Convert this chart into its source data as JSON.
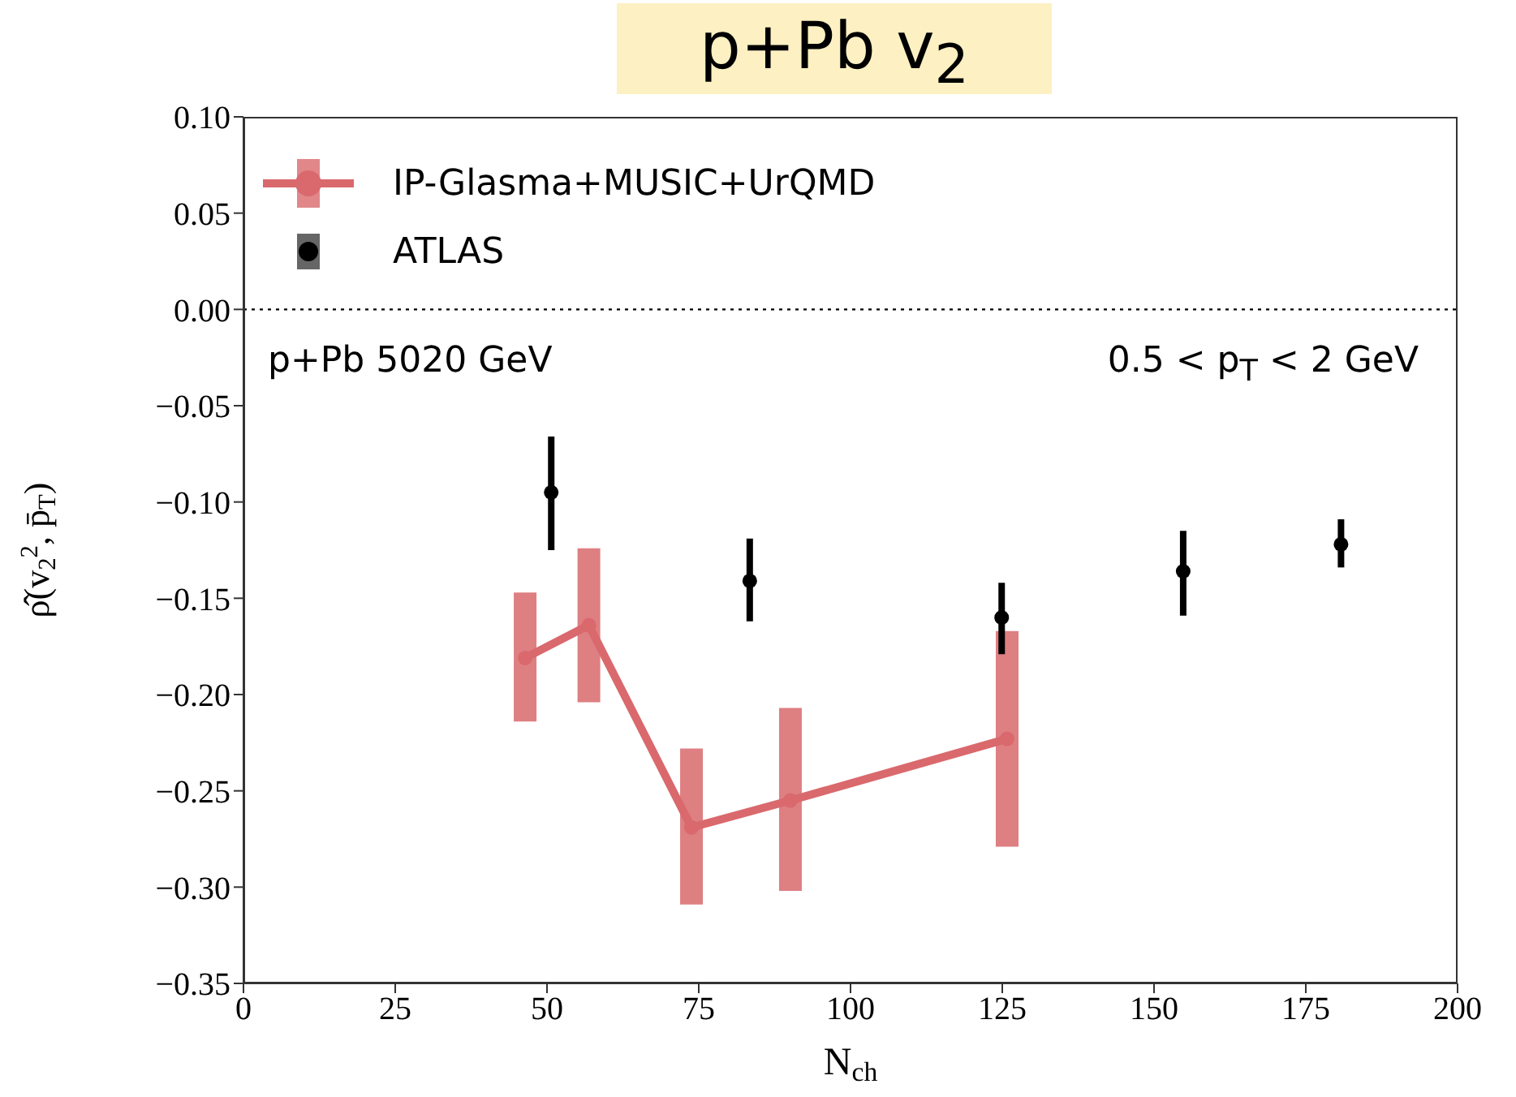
{
  "chart_data": {
    "type": "scatter",
    "title": "p+Pb v$_{2}$",
    "xlabel": "N$_{ch}$",
    "ylabel": "ρ̂(v$_{2}$$^{2}$, p̄$_{T}$)",
    "annotations": [
      "p+Pb 5020 GeV",
      "0.5 < p$_{T}$ < 2 GeV"
    ],
    "xlim": [
      0,
      200
    ],
    "xticks": [
      0,
      25,
      50,
      75,
      100,
      125,
      150,
      175,
      200
    ],
    "ylim": [
      -0.35,
      0.1
    ],
    "yticks": [
      {
        "value": -0.35,
        "label": "−0.35"
      },
      {
        "value": -0.3,
        "label": "−0.30"
      },
      {
        "value": -0.25,
        "label": "−0.25"
      },
      {
        "value": -0.2,
        "label": "−0.20"
      },
      {
        "value": -0.15,
        "label": "−0.15"
      },
      {
        "value": -0.1,
        "label": "−0.10"
      },
      {
        "value": -0.05,
        "label": "−0.05"
      },
      {
        "value": 0,
        "label": "0.00"
      },
      {
        "value": 0.05,
        "label": "0.05"
      },
      {
        "value": 0.1,
        "label": "0.10"
      }
    ],
    "marker": "circle",
    "line_style": "solid",
    "legend": "top left",
    "grid": false,
    "ref_lines": [
      {
        "axis": "y",
        "value": 0,
        "line_style": "dotted",
        "color": "#000000"
      }
    ],
    "series": [
      {
        "name": "IP-Glasma+MUSIC+UrQMD",
        "type": "line",
        "color": "#d9696d",
        "x": [
          46.4,
          56.9,
          73.8,
          90.1,
          125.8
        ],
        "values": [
          -0.181,
          -0.164,
          -0.269,
          -0.255,
          -0.223
        ],
        "errors": [
          [
            -0.214,
            -0.147
          ],
          [
            -0.204,
            -0.124
          ],
          [
            -0.309,
            -0.228
          ],
          [
            -0.302,
            -0.207
          ],
          [
            -0.279,
            -0.167
          ]
        ]
      },
      {
        "name": "ATLAS",
        "color": "#000000",
        "x": [
          50.7,
          83.4,
          124.9,
          154.8,
          180.8
        ],
        "values": [
          -0.095,
          -0.141,
          -0.16,
          -0.136,
          -0.122
        ],
        "errors": [
          [
            -0.125,
            -0.066
          ],
          [
            -0.162,
            -0.119
          ],
          [
            -0.179,
            -0.142
          ],
          [
            -0.159,
            -0.115
          ],
          [
            -0.134,
            -0.109
          ]
        ]
      }
    ]
  }
}
